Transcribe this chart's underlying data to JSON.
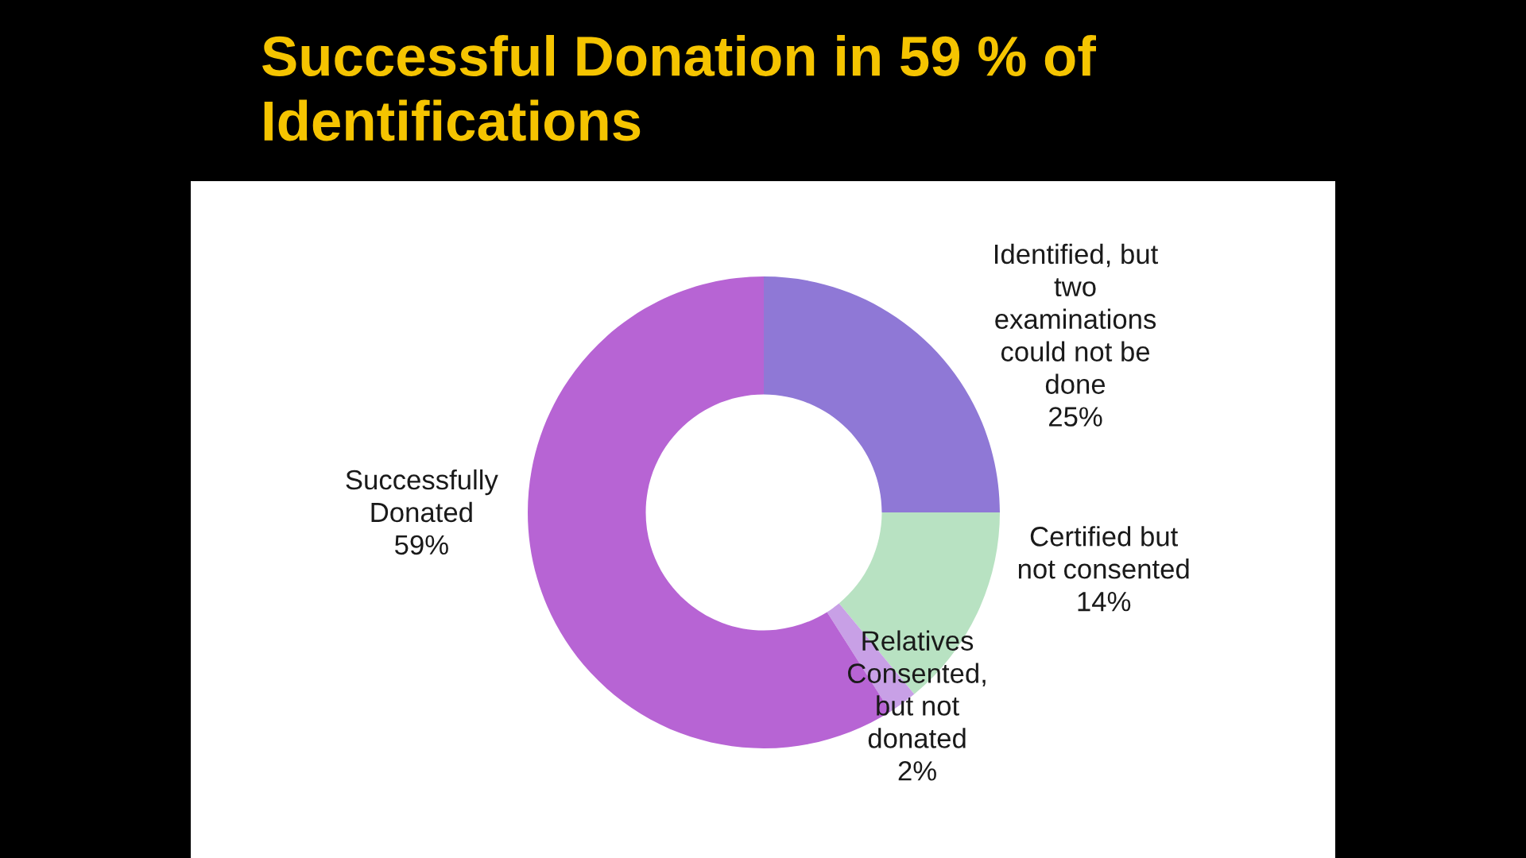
{
  "chart_data": {
    "type": "donut",
    "title": "Successful Donation in 59 % of\nIdentifications",
    "categories": [
      "Identified, but\ntwo\nexaminations\ncould not be\ndone",
      "Certified but\nnot consented",
      "Relatives\nConsented,\nbut not\ndonated",
      "Successfully\nDonated"
    ],
    "values": [
      25,
      14,
      2,
      59
    ],
    "colors": [
      "#8f78d6",
      "#b8e2c2",
      "#c8a0e6",
      "#b764d4"
    ],
    "value_labels": [
      "25%",
      "14%",
      "2%",
      "59%"
    ]
  }
}
